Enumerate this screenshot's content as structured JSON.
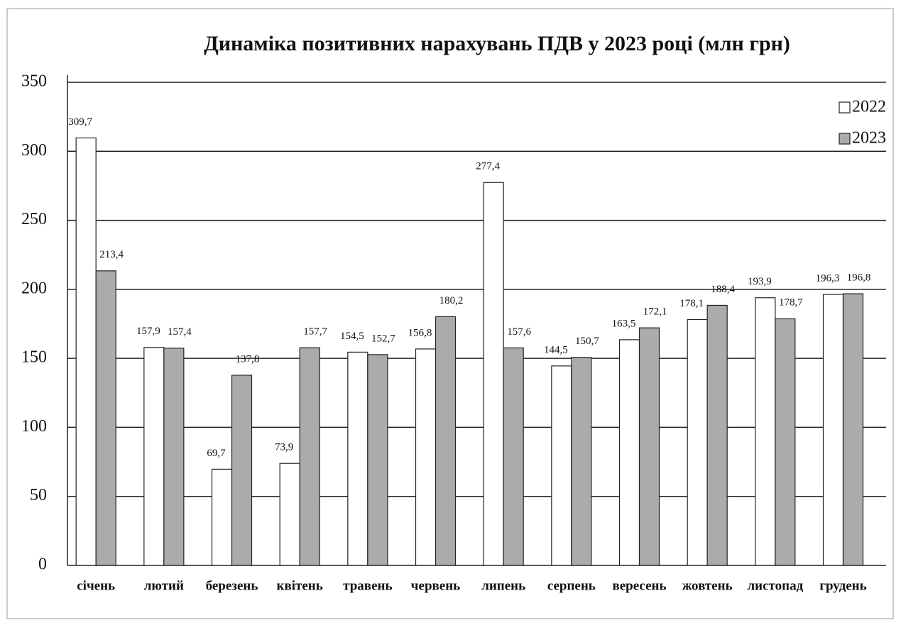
{
  "chart_data": {
    "type": "bar",
    "title": "Динаміка позитивних нарахувань ПДВ у 2023 році (млн грн)",
    "categories": [
      "січень",
      "лютий",
      "березень",
      "квітень",
      "травень",
      "червень",
      "липень",
      "серпень",
      "вересень",
      "жовтень",
      "листопад",
      "грудень"
    ],
    "series": [
      {
        "name": "2022",
        "color": "#ffffff",
        "values": [
          309.7,
          157.9,
          69.7,
          73.9,
          154.5,
          156.8,
          277.4,
          144.5,
          163.5,
          178.1,
          193.9,
          196.3
        ],
        "value_labels": [
          "309,7",
          "157,9",
          "69,7",
          "73,9",
          "154,5",
          "156,8",
          "277,4",
          "144,5",
          "163,5",
          "178,1",
          "193,9",
          "196,3"
        ]
      },
      {
        "name": "2023",
        "color": "#ababab",
        "values": [
          213.4,
          157.4,
          137.8,
          157.7,
          152.7,
          180.2,
          157.6,
          150.7,
          172.1,
          188.4,
          178.7,
          196.8
        ],
        "value_labels": [
          "213,4",
          "157,4",
          "137,8",
          "157,7",
          "152,7",
          "180,2",
          "157,6",
          "150,7",
          "172,1",
          "188,4",
          "178,7",
          "196,8"
        ]
      }
    ],
    "ylim": [
      0,
      350
    ],
    "yticks": [
      0,
      50,
      100,
      150,
      200,
      250,
      300,
      350
    ],
    "grid": true,
    "legend": "top-right"
  }
}
